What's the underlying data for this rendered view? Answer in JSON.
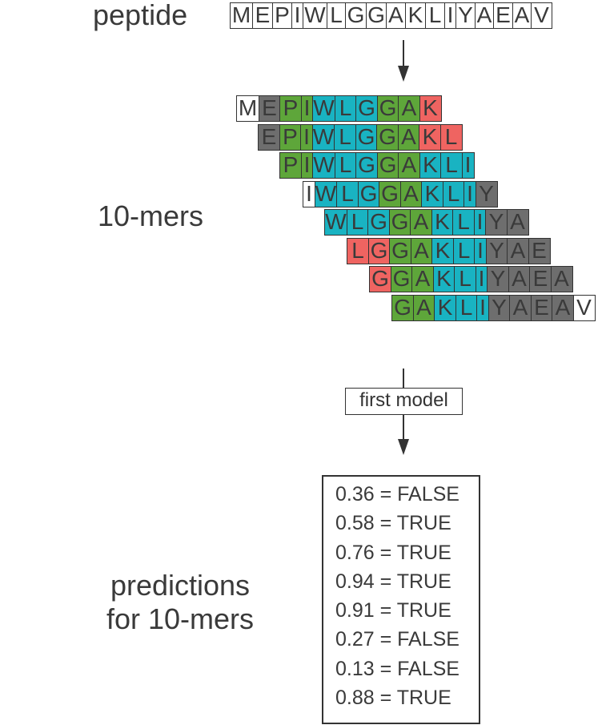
{
  "labels": {
    "peptide": "peptide",
    "mers": "10-mers",
    "predictions": [
      "predictions",
      "for 10-mers"
    ],
    "model": "first model"
  },
  "peptide": "MEPIWLGGAKLIYAEAV",
  "colors": {
    "M": "#ffffff",
    "E": "#6e6e6e",
    "P": "#5ea63a",
    "I": "#19b3c2",
    "W": "#19b3c2",
    "L": "#19b3c2",
    "G": "#5ea63a",
    "A": "#5ea63a",
    "K": "#19b3c2",
    "Y": "#6e6e6e",
    "V": "#ffffff"
  },
  "mers": [
    {
      "cells": [
        [
          "M",
          "#ffffff"
        ],
        [
          "E",
          "#6e6e6e"
        ],
        [
          "P",
          "#5ea63a"
        ],
        [
          "I",
          "#5ea63a"
        ],
        [
          "W",
          "#19b3c2"
        ],
        [
          "L",
          "#19b3c2"
        ],
        [
          "G",
          "#19b3c2"
        ],
        [
          "G",
          "#5ea63a"
        ],
        [
          "A",
          "#5ea63a"
        ],
        [
          "K",
          "#ef6461"
        ]
      ]
    },
    {
      "cells": [
        [
          "E",
          "#6e6e6e"
        ],
        [
          "P",
          "#5ea63a"
        ],
        [
          "I",
          "#5ea63a"
        ],
        [
          "W",
          "#19b3c2"
        ],
        [
          "L",
          "#19b3c2"
        ],
        [
          "G",
          "#19b3c2"
        ],
        [
          "G",
          "#5ea63a"
        ],
        [
          "A",
          "#5ea63a"
        ],
        [
          "K",
          "#ef6461"
        ],
        [
          "L",
          "#ef6461"
        ]
      ]
    },
    {
      "cells": [
        [
          "P",
          "#5ea63a"
        ],
        [
          "I",
          "#5ea63a"
        ],
        [
          "W",
          "#19b3c2"
        ],
        [
          "L",
          "#19b3c2"
        ],
        [
          "G",
          "#19b3c2"
        ],
        [
          "G",
          "#5ea63a"
        ],
        [
          "A",
          "#5ea63a"
        ],
        [
          "K",
          "#19b3c2"
        ],
        [
          "L",
          "#19b3c2"
        ],
        [
          "I",
          "#19b3c2"
        ]
      ]
    },
    {
      "cells": [
        [
          "I",
          "#ffffff"
        ],
        [
          "W",
          "#19b3c2"
        ],
        [
          "L",
          "#19b3c2"
        ],
        [
          "G",
          "#19b3c2"
        ],
        [
          "G",
          "#5ea63a"
        ],
        [
          "A",
          "#5ea63a"
        ],
        [
          "K",
          "#19b3c2"
        ],
        [
          "L",
          "#19b3c2"
        ],
        [
          "I",
          "#19b3c2"
        ],
        [
          "Y",
          "#6e6e6e"
        ]
      ]
    },
    {
      "cells": [
        [
          "W",
          "#19b3c2"
        ],
        [
          "L",
          "#19b3c2"
        ],
        [
          "G",
          "#19b3c2"
        ],
        [
          "G",
          "#5ea63a"
        ],
        [
          "A",
          "#5ea63a"
        ],
        [
          "K",
          "#19b3c2"
        ],
        [
          "L",
          "#19b3c2"
        ],
        [
          "I",
          "#19b3c2"
        ],
        [
          "Y",
          "#6e6e6e"
        ],
        [
          "A",
          "#6e6e6e"
        ]
      ]
    },
    {
      "cells": [
        [
          "L",
          "#ef6461"
        ],
        [
          "G",
          "#ef6461"
        ],
        [
          "G",
          "#5ea63a"
        ],
        [
          "A",
          "#5ea63a"
        ],
        [
          "K",
          "#19b3c2"
        ],
        [
          "L",
          "#19b3c2"
        ],
        [
          "I",
          "#19b3c2"
        ],
        [
          "Y",
          "#6e6e6e"
        ],
        [
          "A",
          "#6e6e6e"
        ],
        [
          "E",
          "#6e6e6e"
        ]
      ]
    },
    {
      "cells": [
        [
          "G",
          "#ef6461"
        ],
        [
          "G",
          "#5ea63a"
        ],
        [
          "A",
          "#5ea63a"
        ],
        [
          "K",
          "#19b3c2"
        ],
        [
          "L",
          "#19b3c2"
        ],
        [
          "I",
          "#19b3c2"
        ],
        [
          "Y",
          "#6e6e6e"
        ],
        [
          "A",
          "#6e6e6e"
        ],
        [
          "E",
          "#6e6e6e"
        ],
        [
          "A",
          "#6e6e6e"
        ]
      ]
    },
    {
      "cells": [
        [
          "G",
          "#5ea63a"
        ],
        [
          "A",
          "#5ea63a"
        ],
        [
          "K",
          "#19b3c2"
        ],
        [
          "L",
          "#19b3c2"
        ],
        [
          "I",
          "#19b3c2"
        ],
        [
          "Y",
          "#6e6e6e"
        ],
        [
          "A",
          "#6e6e6e"
        ],
        [
          "E",
          "#6e6e6e"
        ],
        [
          "A",
          "#6e6e6e"
        ],
        [
          "V",
          "#ffffff"
        ]
      ]
    }
  ],
  "predictions": [
    "0.36 = FALSE",
    "0.58 = TRUE",
    "0.76 = TRUE",
    "0.94 = TRUE",
    "0.91 = TRUE",
    "0.27 = FALSE",
    "0.13 = FALSE",
    "0.88 = TRUE"
  ]
}
